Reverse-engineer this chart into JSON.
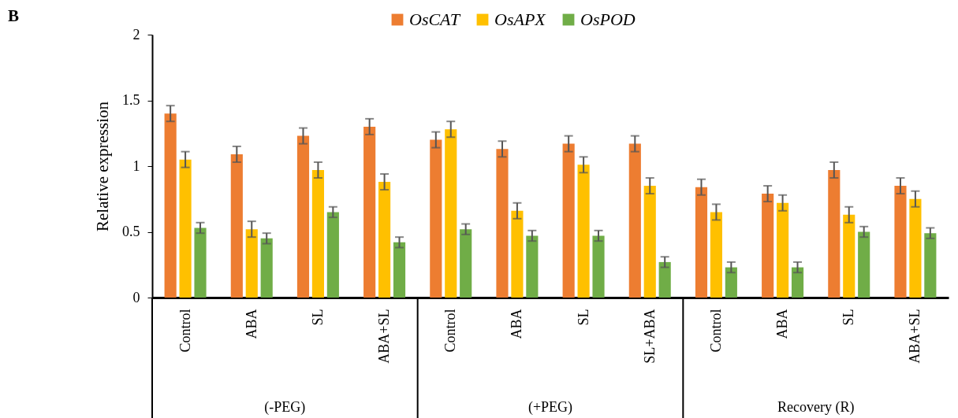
{
  "chart_data": {
    "type": "bar",
    "ylabel": "Relative expression",
    "categories": [
      "Control",
      "ABA",
      "SL",
      "ABA+SL",
      "Control",
      "ABA",
      "SL",
      "SL+ABA",
      "Control",
      "ABA",
      "SL",
      "ABA+SL"
    ],
    "series": [
      {
        "name": "OsCAT",
        "color": "#ed7d31",
        "values": [
          1.4,
          1.09,
          1.23,
          1.3,
          1.2,
          1.13,
          1.17,
          1.17,
          0.84,
          0.79,
          0.97,
          0.85
        ],
        "errors": [
          0.06,
          0.06,
          0.06,
          0.06,
          0.06,
          0.06,
          0.06,
          0.06,
          0.06,
          0.06,
          0.06,
          0.06
        ]
      },
      {
        "name": "OsAPX",
        "color": "#ffc000",
        "values": [
          1.05,
          0.52,
          0.97,
          0.88,
          1.28,
          0.66,
          1.01,
          0.85,
          0.65,
          0.72,
          0.63,
          0.75
        ],
        "errors": [
          0.06,
          0.06,
          0.06,
          0.06,
          0.06,
          0.06,
          0.06,
          0.06,
          0.06,
          0.06,
          0.06,
          0.06
        ]
      },
      {
        "name": "OsPOD",
        "color": "#70ad47",
        "values": [
          0.53,
          0.45,
          0.65,
          0.42,
          0.52,
          0.47,
          0.47,
          0.27,
          0.23,
          0.23,
          0.5,
          0.49
        ],
        "errors": [
          0.04,
          0.04,
          0.04,
          0.04,
          0.04,
          0.04,
          0.04,
          0.04,
          0.04,
          0.04,
          0.04,
          0.04
        ]
      }
    ],
    "ylim": [
      0,
      2
    ],
    "yticks": [
      0,
      0.5,
      1,
      1.5,
      2
    ],
    "grid": false,
    "legend": "top",
    "annotations": [
      "B",
      "(-PEG)",
      "(+PEG)",
      "Recovery (R)"
    ]
  }
}
